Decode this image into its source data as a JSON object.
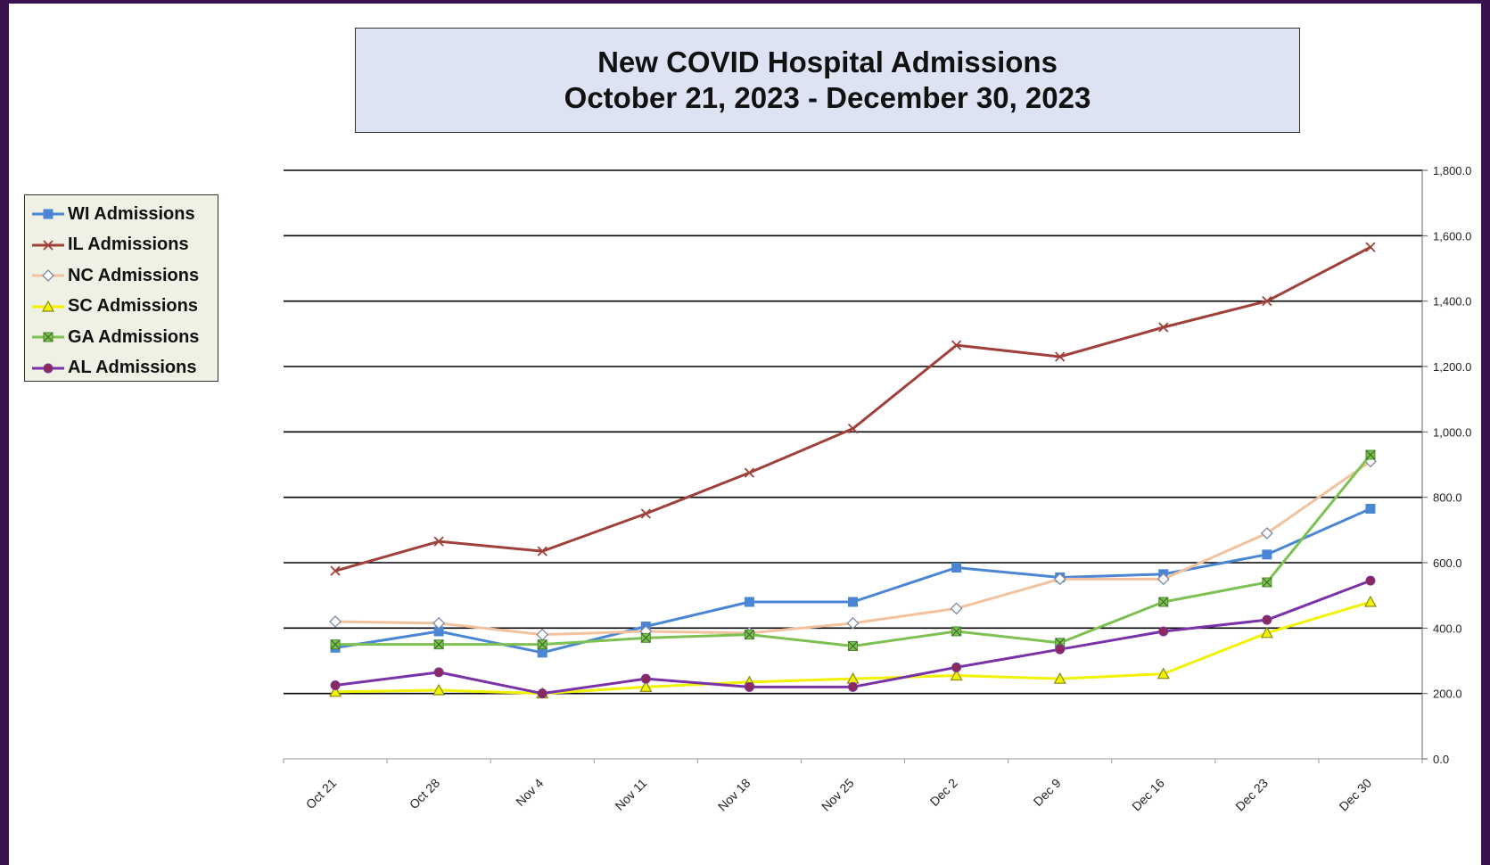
{
  "chart_data": {
    "type": "line",
    "title": "New COVID Hospital Admissions",
    "subtitle": "October 21, 2023 - December 30, 2023",
    "xlabel": "",
    "ylabel": "",
    "categories": [
      "Oct 21",
      "Oct 28",
      "Nov 4",
      "Nov 11",
      "Nov 18",
      "Nov 25",
      "Dec 2",
      "Dec 9",
      "Dec 16",
      "Dec 23",
      "Dec 30"
    ],
    "ylim": [
      0,
      1800
    ],
    "yticks": [
      "0.0",
      "200.0",
      "400.0",
      "600.0",
      "800.0",
      "1,000.0",
      "1,200.0",
      "1,400.0",
      "1,600.0",
      "1,800.0"
    ],
    "grid": true,
    "y_axis_side": "right",
    "legend_position": "left",
    "series": [
      {
        "name": "WI Admissions",
        "color": "#4a86d4",
        "marker": "square",
        "values": [
          340,
          390,
          325,
          405,
          480,
          480,
          585,
          555,
          565,
          625,
          765
        ]
      },
      {
        "name": "IL Admissions",
        "color": "#a0403a",
        "marker": "x",
        "values": [
          575,
          665,
          635,
          750,
          875,
          1010,
          1265,
          1230,
          1320,
          1400,
          1565
        ]
      },
      {
        "name": "NC Admissions",
        "color": "#f2c29e",
        "marker": "diamond",
        "values": [
          420,
          415,
          380,
          390,
          385,
          415,
          460,
          550,
          550,
          690,
          910
        ]
      },
      {
        "name": "SC Admissions",
        "color": "#f2f200",
        "marker": "triangle",
        "values": [
          205,
          210,
          200,
          220,
          235,
          245,
          255,
          245,
          260,
          385,
          480
        ]
      },
      {
        "name": "GA Admissions",
        "color": "#7cc152",
        "marker": "star",
        "values": [
          350,
          350,
          350,
          370,
          380,
          345,
          390,
          355,
          480,
          540,
          930
        ]
      },
      {
        "name": "AL Admissions",
        "color": "#7a32a8",
        "marker": "circle",
        "values": [
          225,
          265,
          200,
          245,
          220,
          220,
          280,
          335,
          390,
          425,
          545
        ]
      }
    ]
  }
}
